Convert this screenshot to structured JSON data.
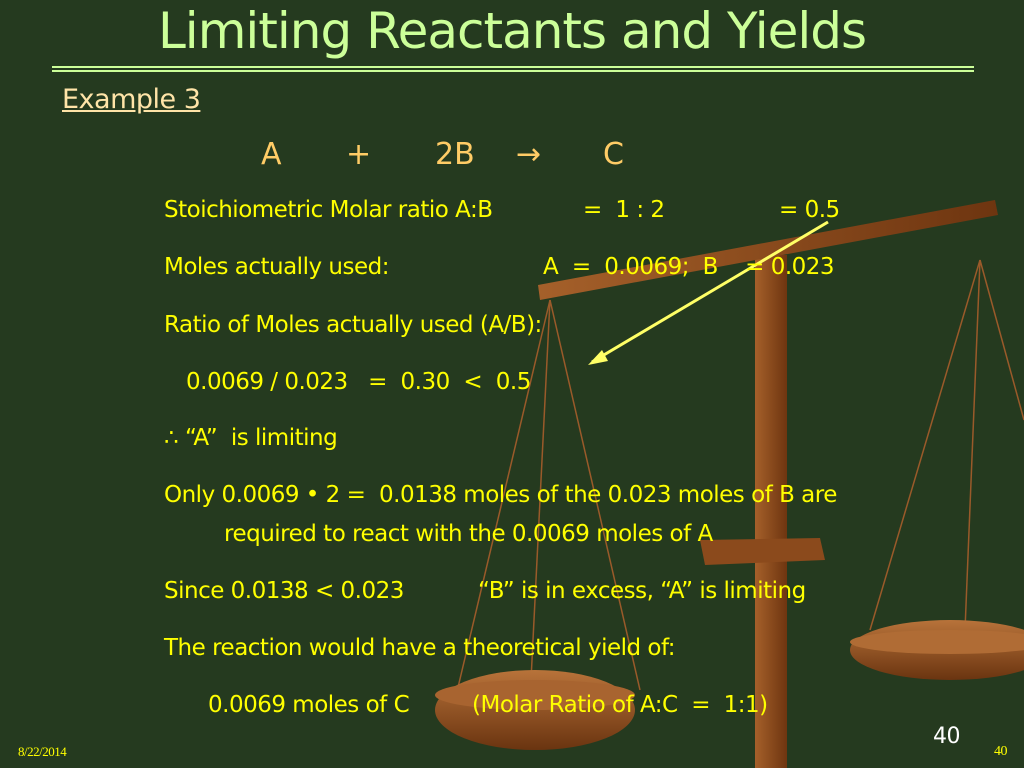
{
  "title": "Limiting Reactants and Yields",
  "example_label": "Example 3",
  "equation": {
    "a": "A",
    "plus": "+",
    "b": "2B",
    "arrow": "→",
    "c": "C"
  },
  "lines": [
    {
      "left": "Stoichiometric Molar ratio A:B",
      "mid": "=  1 : 2",
      "right": "= 0.5"
    },
    {
      "left": "Moles actually used:",
      "right": "A  =  0.0069;  B    = 0.023"
    },
    {
      "text": "Ratio of Moles actually used (A/B):"
    },
    {
      "text": "0.0069 / 0.023   =  0.30  <  0.5"
    },
    {
      "text": "∴ “A”  is limiting"
    },
    {
      "text": "Only 0.0069 • 2 =  0.0138 moles of the 0.023 moles of B are"
    },
    {
      "text": "required to react with the 0.0069 moles of A"
    },
    {
      "left": "Since 0.0138 < 0.023",
      "right": "“B” is in excess, “A” is limiting"
    },
    {
      "text": "The reaction would have a theoretical yield of:"
    },
    {
      "left": "0.0069 moles of C",
      "right": "(Molar Ratio of A:C  =  1:1)"
    }
  ],
  "footer": {
    "date": "8/22/2014",
    "page_number": "40",
    "slide_number": "40"
  },
  "colors": {
    "background": "#253a1f",
    "title": "#ccff99",
    "body": "#ffff00",
    "equation": "#ffcc66",
    "arrow": "#ffff66",
    "scale": "#8b4a1c"
  }
}
